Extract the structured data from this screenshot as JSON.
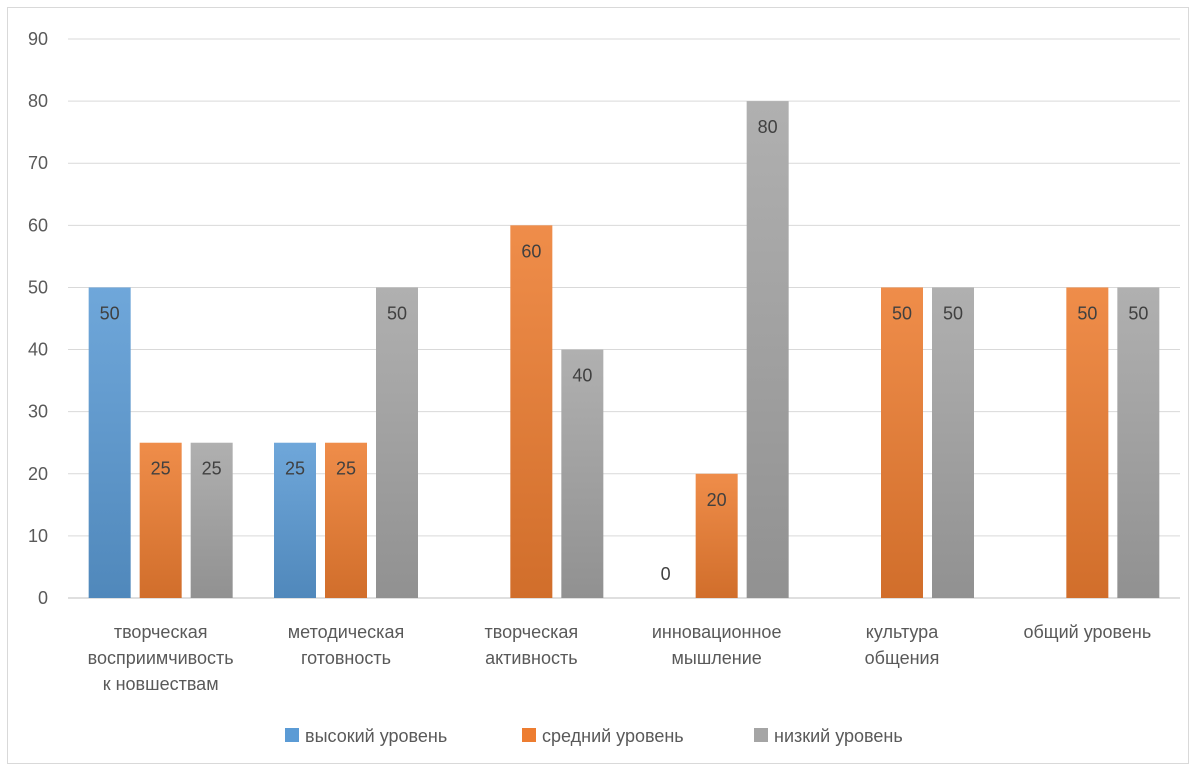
{
  "chart_data": {
    "type": "bar",
    "categories": [
      [
        "творческая",
        "восприимчивость",
        "к новшествам"
      ],
      [
        "методическая",
        "готовность"
      ],
      [
        "творческая",
        "активность"
      ],
      [
        "инновационное",
        "мышление"
      ],
      [
        "культура",
        "общения"
      ],
      [
        "общий уровень"
      ]
    ],
    "series": [
      {
        "name": "высокий уровень",
        "values": [
          50,
          25,
          null,
          0,
          null,
          null
        ],
        "color": "#5b9bd5"
      },
      {
        "name": "средний уровень",
        "values": [
          25,
          25,
          60,
          20,
          50,
          50
        ],
        "color": "#ed7d31"
      },
      {
        "name": "низкий уровень",
        "values": [
          25,
          50,
          40,
          80,
          50,
          50
        ],
        "color": "#a5a5a5"
      }
    ],
    "ylim": [
      0,
      90
    ],
    "yticks": [
      0,
      10,
      20,
      30,
      40,
      50,
      60,
      70,
      80,
      90
    ],
    "grid": true,
    "legend_position": "bottom"
  }
}
